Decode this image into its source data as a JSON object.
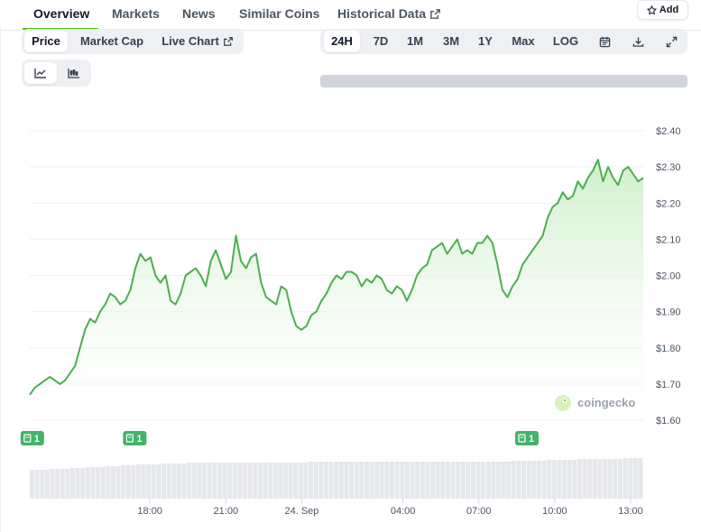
{
  "nav": {
    "tabs": [
      {
        "label": "Overview",
        "active": true
      },
      {
        "label": "Markets",
        "active": false
      },
      {
        "label": "News",
        "active": false
      },
      {
        "label": "Similar Coins",
        "active": false
      },
      {
        "label": "Historical Data",
        "active": false,
        "external": true
      }
    ],
    "add_label": "Add"
  },
  "chart_type_tabs": [
    "Price",
    "Market Cap",
    "Live Chart"
  ],
  "chart_type_active": "Price",
  "range_tabs": [
    "24H",
    "7D",
    "1M",
    "3M",
    "1Y",
    "Max",
    "LOG"
  ],
  "range_active": "24H",
  "view_toggle": [
    "line-chart-icon",
    "candlestick-chart-icon"
  ],
  "tool_icons": [
    "calendar-icon",
    "download-icon",
    "expand-icon"
  ],
  "watermark": "coingecko",
  "colors": {
    "accent": "#4bcc00",
    "line": "#4caf50",
    "fill": "#d7f0d3",
    "event_badge": "#43b36a"
  },
  "chart_data": {
    "type": "area",
    "yticks": [
      "$2.40",
      "$2.30",
      "$2.20",
      "$2.10",
      "$2.00",
      "$1.90",
      "$1.80",
      "$1.70",
      "$1.60"
    ],
    "ylim": [
      1.6,
      2.4
    ],
    "xticks": [
      "18:00",
      "21:00",
      "24. Sep",
      "04:00",
      "07:00",
      "10:00",
      "13:00"
    ],
    "xtick_hours": [
      18,
      21,
      24,
      28,
      31,
      34,
      37
    ],
    "x_range_hours": [
      13.25,
      37.5
    ],
    "events": [
      {
        "label": "1",
        "hour": 13.35
      },
      {
        "label": "1",
        "hour": 17.4
      },
      {
        "label": "1",
        "hour": 32.9
      }
    ],
    "price_series": [
      1.67,
      1.69,
      1.7,
      1.71,
      1.72,
      1.71,
      1.7,
      1.71,
      1.73,
      1.75,
      1.8,
      1.85,
      1.88,
      1.87,
      1.9,
      1.92,
      1.95,
      1.94,
      1.92,
      1.93,
      1.96,
      2.02,
      2.06,
      2.04,
      2.05,
      2.0,
      1.98,
      2.0,
      1.93,
      1.92,
      1.95,
      2.0,
      2.01,
      2.02,
      2.0,
      1.97,
      2.04,
      2.07,
      2.03,
      1.99,
      2.01,
      2.11,
      2.04,
      2.02,
      2.05,
      2.06,
      1.98,
      1.94,
      1.93,
      1.92,
      1.97,
      1.96,
      1.9,
      1.86,
      1.85,
      1.86,
      1.89,
      1.9,
      1.93,
      1.95,
      1.98,
      2.0,
      1.99,
      2.01,
      2.01,
      2.0,
      1.97,
      1.99,
      1.98,
      2.0,
      1.99,
      1.96,
      1.95,
      1.97,
      1.96,
      1.93,
      1.96,
      2.0,
      2.02,
      2.03,
      2.07,
      2.08,
      2.09,
      2.06,
      2.08,
      2.1,
      2.06,
      2.07,
      2.06,
      2.09,
      2.09,
      2.11,
      2.09,
      2.03,
      1.96,
      1.94,
      1.97,
      1.99,
      2.03,
      2.05,
      2.07,
      2.09,
      2.11,
      2.16,
      2.19,
      2.2,
      2.23,
      2.21,
      2.22,
      2.26,
      2.24,
      2.27,
      2.29,
      2.32,
      2.26,
      2.3,
      2.27,
      2.25,
      2.29,
      2.3,
      2.28,
      2.26,
      2.27
    ],
    "volume_series": [
      32,
      32,
      32,
      32,
      33,
      33,
      33,
      33,
      34,
      34,
      34,
      35,
      35,
      35,
      35,
      36,
      36,
      36,
      37,
      37,
      37,
      38,
      38,
      38,
      38,
      38,
      39,
      39,
      39,
      39,
      39,
      40,
      40,
      40,
      40,
      40,
      40,
      40,
      40,
      40,
      40,
      40,
      40,
      40,
      40,
      40,
      40,
      40,
      40,
      40,
      40,
      40,
      40,
      40,
      40,
      41,
      41,
      41,
      41,
      41,
      41,
      41,
      41,
      41,
      41,
      41,
      41,
      41,
      41,
      41,
      41,
      41,
      41,
      41,
      41,
      41,
      41,
      41,
      41,
      41,
      41,
      41,
      41,
      41,
      41,
      41,
      41,
      41,
      41,
      41,
      41,
      41,
      41,
      41,
      41,
      42,
      42,
      42,
      42,
      42,
      42,
      42,
      43,
      43,
      43,
      43,
      43,
      43,
      44,
      44,
      44,
      44,
      44,
      44,
      44,
      44,
      44,
      45,
      45,
      45,
      45
    ]
  }
}
